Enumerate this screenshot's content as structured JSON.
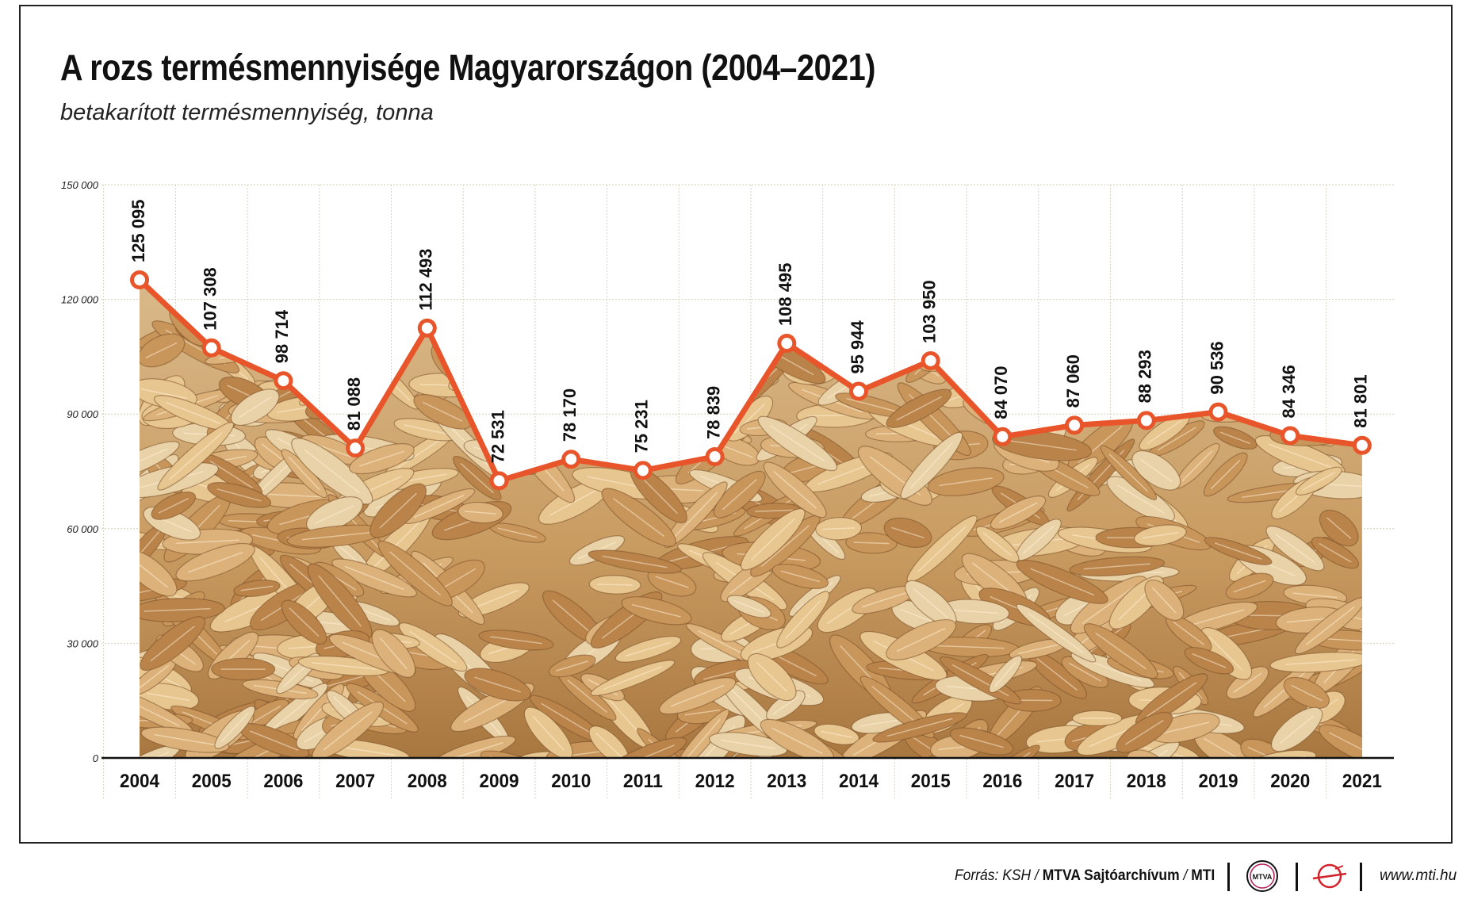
{
  "header": {
    "title": "A rozs termésmennyisége Magyarországon (2004–2021)",
    "subtitle": "betakarított termésmennyiség, tonna"
  },
  "footer": {
    "source_prefix": "Forrás: KSH / ",
    "source_archive": "MTVA Sajtóarchívum",
    "source_sep": " / ",
    "source_mti": "MTI",
    "mtva_logo_text": "MTVA",
    "website": "www.mti.hu"
  },
  "chart_data": {
    "type": "line",
    "title": "A rozs termésmennyisége Magyarországon (2004–2021)",
    "subtitle": "betakarított termésmennyiség, tonna",
    "categories": [
      "2004",
      "2005",
      "2006",
      "2007",
      "2008",
      "2009",
      "2010",
      "2011",
      "2012",
      "2013",
      "2014",
      "2015",
      "2016",
      "2017",
      "2018",
      "2019",
      "2020",
      "2021"
    ],
    "series": [
      {
        "values": [
          125095,
          107308,
          98714,
          81088,
          112493,
          72531,
          78170,
          75231,
          78839,
          108495,
          95944,
          103950,
          84070,
          87060,
          88293,
          90536,
          84346,
          81801
        ],
        "labels": [
          "125 095",
          "107 308",
          "98 714",
          "81 088",
          "112 493",
          "72 531",
          "78 170",
          "75 231",
          "78 839",
          "108 495",
          "95 944",
          "103 950",
          "84 070",
          "87 060",
          "88 293",
          "90 536",
          "84 346",
          "81 801"
        ]
      }
    ],
    "ylim": [
      0,
      150000
    ],
    "yticks": [
      0,
      30000,
      60000,
      90000,
      120000,
      150000
    ],
    "ytick_labels": [
      "0",
      "30 000",
      "60 000",
      "90 000",
      "120 000",
      "150 000"
    ],
    "grid": true,
    "background_fill": "grain photo (rye kernels) under the line",
    "colors": {
      "line": "#e8552a",
      "marker_fill": "#ffffff",
      "grain_light": "#e8c690",
      "grain_mid": "#c8955a",
      "grain_dark": "#7a4e26",
      "grid": "#d6d0b8",
      "axis": "#111111"
    }
  }
}
